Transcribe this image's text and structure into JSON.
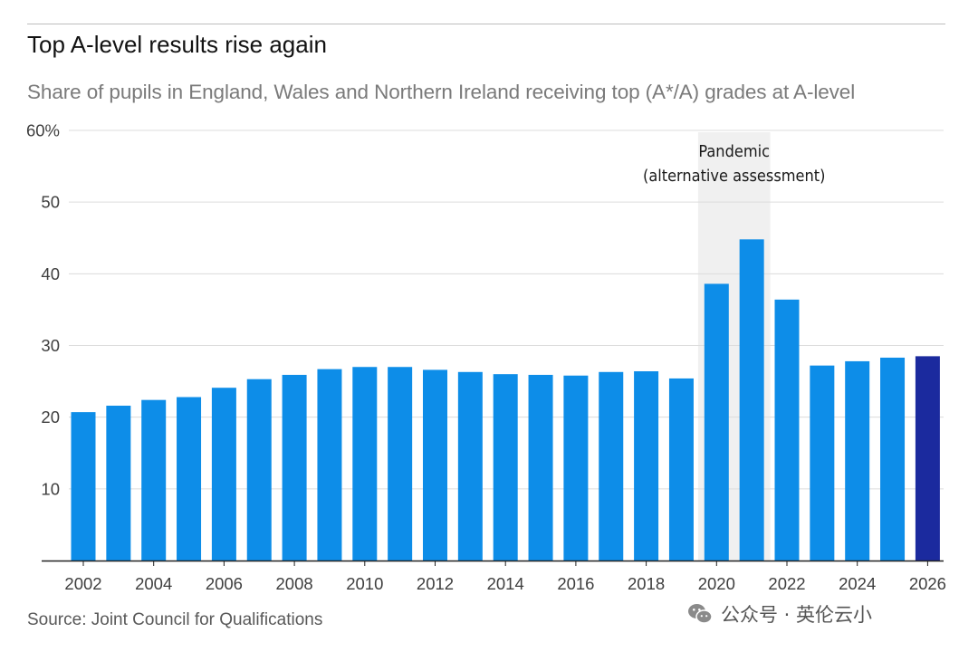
{
  "header": {
    "title": "Top A-level results rise again",
    "subtitle": "Share of pupils in England, Wales and Northern Ireland receiving top (A*/A) grades at A-level"
  },
  "footer": {
    "source": "Source: Joint Council for Qualifications",
    "watermark": "公众号 · 英伦云小"
  },
  "colors": {
    "bar": "#0d8de8",
    "highlight_bar": "#1b2a9e",
    "pandemic_band": "#f0f0f0",
    "gridline": "#dcdcdc",
    "axis": "#222222"
  },
  "chart_data": {
    "type": "bar",
    "title": "Top A-level results rise again",
    "subtitle": "Share of pupils in England, Wales and Northern Ireland receiving top (A*/A) grades at A-level",
    "categories": [
      2002,
      2003,
      2004,
      2005,
      2006,
      2007,
      2008,
      2009,
      2010,
      2011,
      2012,
      2013,
      2014,
      2015,
      2016,
      2017,
      2018,
      2019,
      2020,
      2021,
      2022,
      2023,
      2024,
      2025,
      2026
    ],
    "values": [
      20.7,
      21.6,
      22.4,
      22.8,
      24.1,
      25.3,
      25.9,
      26.7,
      27.0,
      27.0,
      26.6,
      26.3,
      26.0,
      25.9,
      25.8,
      26.3,
      26.4,
      25.4,
      38.6,
      44.8,
      36.4,
      27.2,
      27.8,
      28.3,
      28.5
    ],
    "highlight_category": 2026,
    "xticks": [
      "2002",
      "2004",
      "2006",
      "2008",
      "2010",
      "2012",
      "2014",
      "2016",
      "2018",
      "2020",
      "2022",
      "2024",
      "2026"
    ],
    "yticks": [
      "10",
      "20",
      "30",
      "40",
      "50",
      "60%"
    ],
    "ylim": [
      0,
      60
    ],
    "grid": true,
    "annotations": [
      {
        "text_lines": [
          "Pandemic",
          "(alternative assessment)"
        ],
        "x_start": 2020,
        "x_end": 2021
      }
    ]
  }
}
